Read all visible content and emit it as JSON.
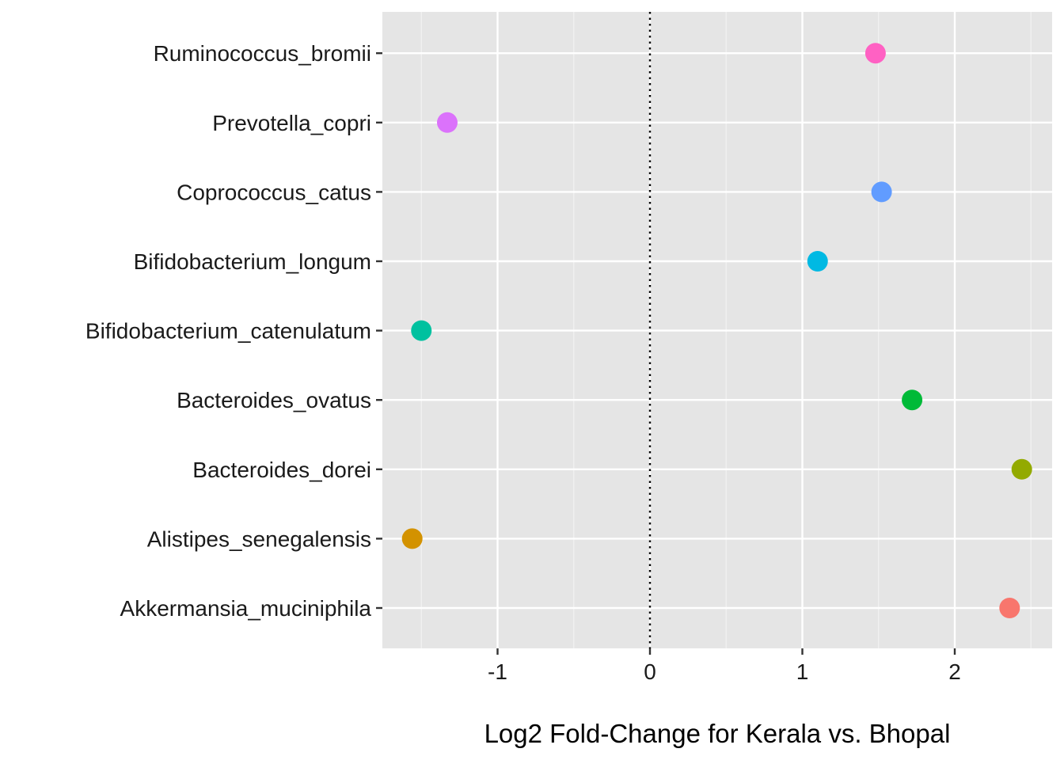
{
  "chart_data": {
    "type": "scatter",
    "title": "",
    "xlabel": "Log2 Fold-Change for Kerala vs. Bhopal",
    "ylabel": "",
    "xlim": [
      -1.76,
      2.6
    ],
    "x_ticks": [
      -1,
      0,
      1,
      2
    ],
    "x_tick_labels": [
      "-1",
      "0",
      "1",
      "2"
    ],
    "reference_line": {
      "x": 0,
      "style": "dotted"
    },
    "grid": true,
    "legend": "none",
    "panel_background": "#E5E5E5",
    "grid_color": "#FFFFFF",
    "categories": [
      "Akkermansia_muciniphila",
      "Alistipes_senegalensis",
      "Bacteroides_dorei",
      "Bacteroides_ovatus",
      "Bifidobacterium_catenulatum",
      "Bifidobacterium_longum",
      "Coprococcus_catus",
      "Prevotella_copri",
      "Ruminococcus_bromii"
    ],
    "points": [
      {
        "species": "Akkermansia_muciniphila",
        "x": 2.36,
        "color": "#F8766D"
      },
      {
        "species": "Alistipes_senegalensis",
        "x": -1.56,
        "color": "#D39200"
      },
      {
        "species": "Bacteroides_dorei",
        "x": 2.44,
        "color": "#93AA00"
      },
      {
        "species": "Bacteroides_ovatus",
        "x": 1.72,
        "color": "#00BA38"
      },
      {
        "species": "Bifidobacterium_catenulatum",
        "x": -1.5,
        "color": "#00C19F"
      },
      {
        "species": "Bifidobacterium_longum",
        "x": 1.1,
        "color": "#00B9E3"
      },
      {
        "species": "Coprococcus_catus",
        "x": 1.52,
        "color": "#619CFF"
      },
      {
        "species": "Prevotella_copri",
        "x": -1.33,
        "color": "#DB72FB"
      },
      {
        "species": "Ruminococcus_bromii",
        "x": 1.48,
        "color": "#FF61C3"
      }
    ]
  }
}
